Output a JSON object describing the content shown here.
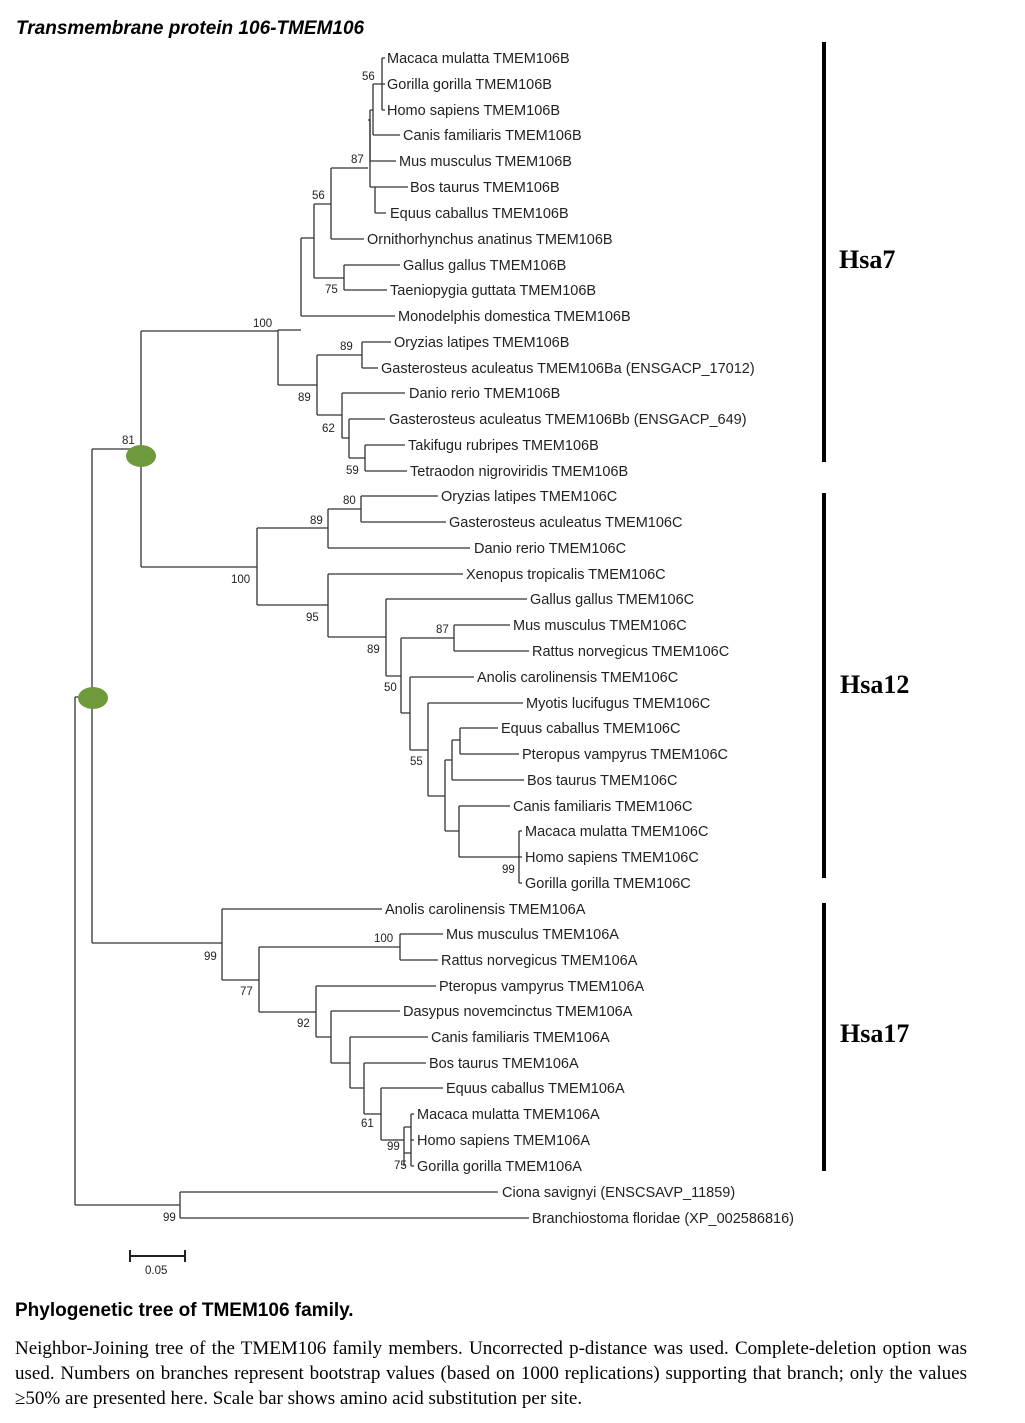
{
  "title": "Transmembrane protein 106-TMEM106",
  "leaves": [
    "Macaca mulatta TMEM106B",
    "Gorilla gorilla TMEM106B",
    "Homo sapiens TMEM106B",
    "Canis familiaris TMEM106B",
    "Mus musculus TMEM106B",
    "Bos taurus TMEM106B",
    "Equus caballus TMEM106B",
    "Ornithorhynchus anatinus TMEM106B",
    "Gallus gallus TMEM106B",
    "Taeniopygia guttata TMEM106B",
    "Monodelphis domestica TMEM106B",
    "Oryzias latipes TMEM106B",
    "Gasterosteus aculeatus TMEM106Ba (ENSGACP_17012)",
    "Danio rerio TMEM106B",
    "Gasterosteus aculeatus TMEM106Bb (ENSGACP_649)",
    "Takifugu rubripes TMEM106B",
    "Tetraodon nigroviridis TMEM106B",
    "Oryzias latipes TMEM106C",
    "Gasterosteus aculeatus TMEM106C",
    "Danio rerio TMEM106C",
    "Xenopus tropicalis TMEM106C",
    "Gallus gallus TMEM106C",
    "Mus musculus TMEM106C",
    "Rattus norvegicus TMEM106C",
    "Anolis carolinensis TMEM106C",
    "Myotis lucifugus TMEM106C",
    "Equus caballus TMEM106C",
    "Pteropus vampyrus TMEM106C",
    "Bos taurus TMEM106C",
    "Canis familiaris TMEM106C",
    "Macaca mulatta TMEM106C",
    "Homo sapiens TMEM106C",
    "Gorilla gorilla TMEM106C",
    "Anolis carolinensis TMEM106A",
    "Mus musculus TMEM106A",
    "Rattus norvegicus TMEM106A",
    "Pteropus vampyrus TMEM106A",
    "Dasypus novemcinctus TMEM106A",
    "Canis familiaris TMEM106A",
    "Bos taurus TMEM106A",
    "Equus caballus TMEM106A",
    "Macaca mulatta TMEM106A",
    "Homo sapiens TMEM106A",
    "Gorilla gorilla TMEM106A",
    "Ciona savignyi (ENSCSAVP_11859)",
    "Branchiostoma floridae (XP_002586816)"
  ],
  "bootstrap": [
    "56",
    "87",
    "56",
    "75",
    "100",
    "89",
    "89",
    "62",
    "59",
    "81",
    "80",
    "89",
    "100",
    "95",
    "87",
    "89",
    "50",
    "55",
    "99",
    "100",
    "99",
    "77",
    "92",
    "61",
    "99",
    "75",
    "99"
  ],
  "groups": [
    "Hsa7",
    "Hsa12",
    "Hsa17"
  ],
  "scale_label": "0.05",
  "caption_title": "Phylogenetic tree of TMEM106 family.",
  "caption_text": "Neighbor-Joining tree of the TMEM106 family members. Uncorrected p-distance was used. Complete-deletion option was used. Numbers on branches represent bootstrap values (based on 1000 replications) supporting that branch; only the values ≥50% are presented here. Scale bar shows amino acid substitution per site.",
  "colors": {
    "node_marker": "#6e9a3c",
    "branch": "#333333"
  }
}
